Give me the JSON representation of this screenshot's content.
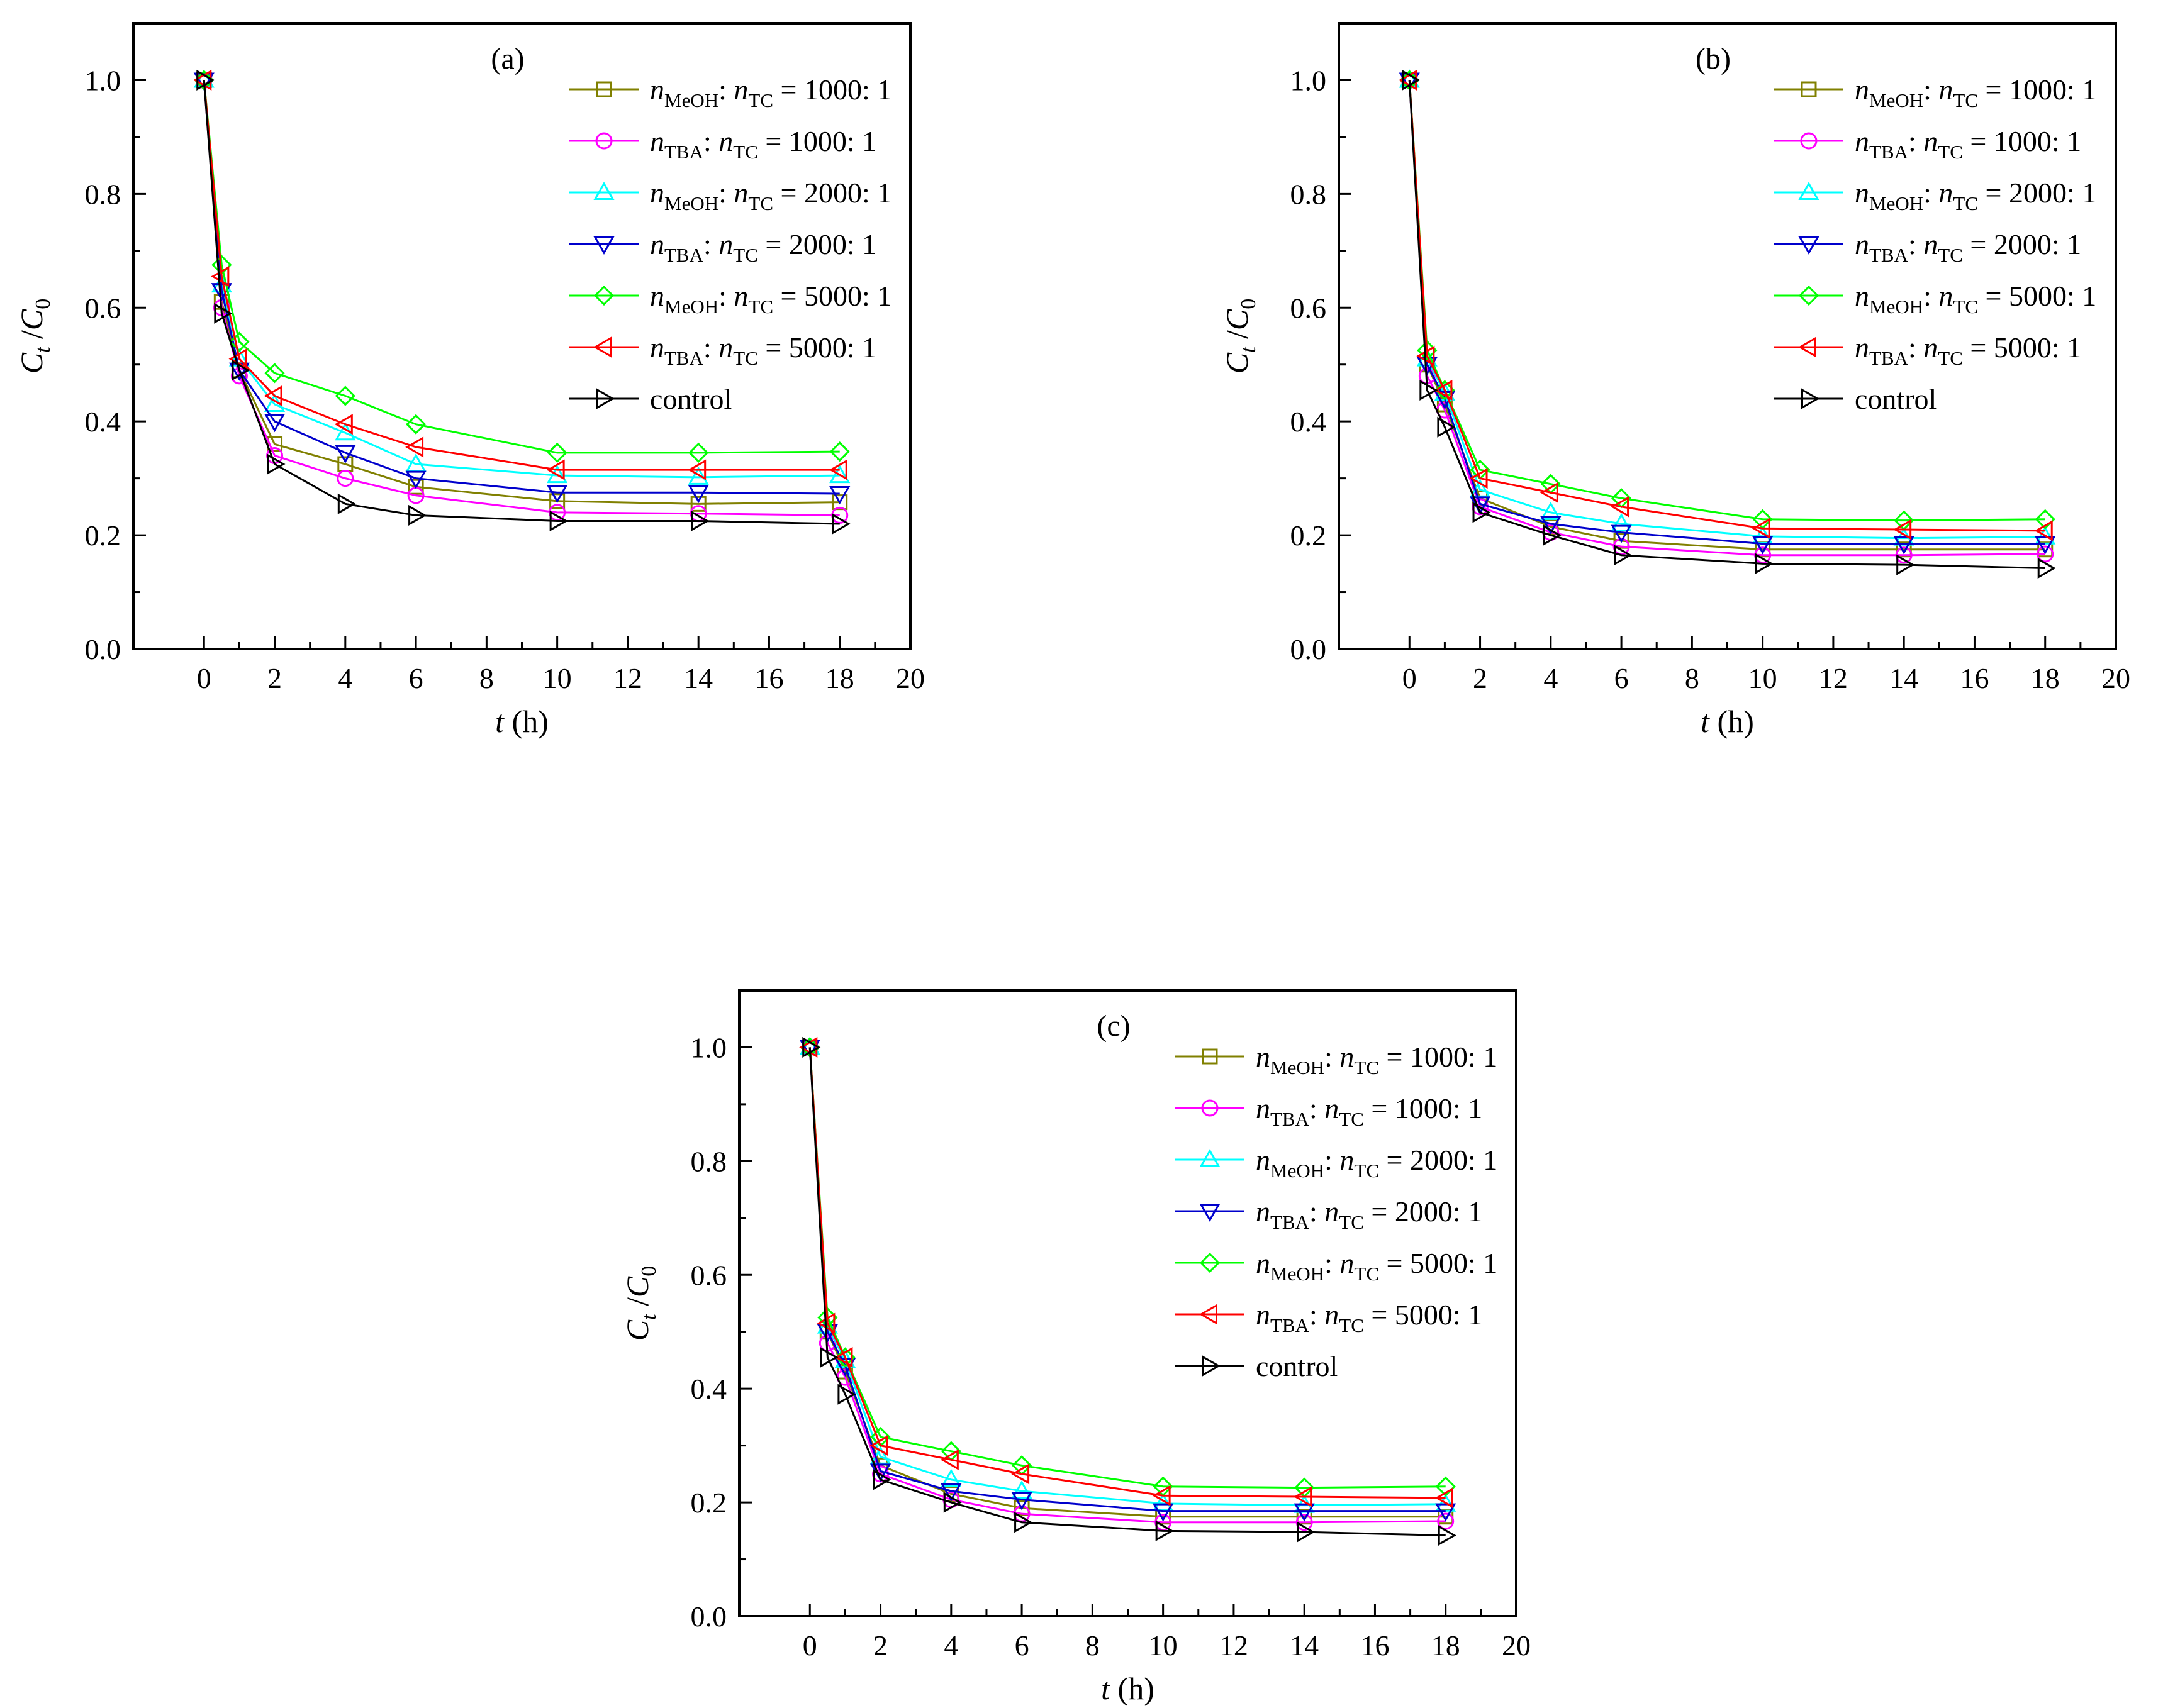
{
  "chart_data": [
    {
      "panel_label": "(a)",
      "type": "line",
      "xlabel": "t (h)",
      "ylabel": "C_t /C_0",
      "xlim": [
        -2,
        20
      ],
      "ylim": [
        0,
        1.1
      ],
      "xticks": [
        "0",
        "2",
        "4",
        "6",
        "8",
        "10",
        "12",
        "14",
        "16",
        "18",
        "20"
      ],
      "yticks": [
        "0.0",
        "0.2",
        "0.4",
        "0.6",
        "0.8",
        "1.0"
      ],
      "legend_position": "top-right",
      "x": [
        0,
        0.5,
        1,
        2,
        4,
        6,
        10,
        14,
        18
      ],
      "series": [
        {
          "name_main": "n",
          "name_sub": "MeOH",
          "name_mid": ": ",
          "name_main2": "n",
          "name_sub2": "TC",
          "name_tail": " = 1000: 1",
          "color": "#808000",
          "marker": "square",
          "values": [
            1.0,
            0.61,
            0.49,
            0.36,
            0.325,
            0.285,
            0.26,
            0.255,
            0.258
          ]
        },
        {
          "name_main": "n",
          "name_sub": "TBA",
          "name_mid": ": ",
          "name_main2": "n",
          "name_sub2": "TC",
          "name_tail": " = 1000:  1",
          "color": "#ff00ff",
          "marker": "circle",
          "values": [
            1.0,
            0.6,
            0.48,
            0.34,
            0.3,
            0.27,
            0.24,
            0.238,
            0.235
          ]
        },
        {
          "name_main": "n",
          "name_sub": "MeOH",
          "name_mid": ": ",
          "name_main2": "n",
          "name_sub2": "TC",
          "name_tail": " = 2000: 1",
          "color": "#00ffff",
          "marker": "triangle-up",
          "values": [
            1.0,
            0.64,
            0.51,
            0.43,
            0.38,
            0.325,
            0.305,
            0.302,
            0.305
          ]
        },
        {
          "name_main": "n",
          "name_sub": "TBA",
          "name_mid": ": ",
          "name_main2": "n",
          "name_sub2": "TC",
          "name_tail": " = 2000:  1",
          "color": "#0000cc",
          "marker": "triangle-down",
          "values": [
            1.0,
            0.63,
            0.49,
            0.4,
            0.345,
            0.3,
            0.275,
            0.275,
            0.273
          ]
        },
        {
          "name_main": "n",
          "name_sub": "MeOH",
          "name_mid": ": ",
          "name_main2": "n",
          "name_sub2": "TC",
          "name_tail": " = 5000: 1",
          "color": "#00ff00",
          "marker": "diamond",
          "values": [
            1.0,
            0.675,
            0.54,
            0.485,
            0.445,
            0.395,
            0.345,
            0.345,
            0.347
          ]
        },
        {
          "name_main": "n",
          "name_sub": "TBA",
          "name_mid": ": ",
          "name_main2": "n",
          "name_sub2": "TC",
          "name_tail": " = 5000:  1",
          "color": "#ff0000",
          "marker": "triangle-left",
          "values": [
            1.0,
            0.655,
            0.51,
            0.445,
            0.395,
            0.355,
            0.315,
            0.315,
            0.315
          ]
        },
        {
          "name_main": "control",
          "name_sub": "",
          "name_mid": "",
          "name_main2": "",
          "name_sub2": "",
          "name_tail": "",
          "color": "#000000",
          "marker": "triangle-right",
          "values": [
            1.0,
            0.59,
            0.49,
            0.325,
            0.255,
            0.235,
            0.225,
            0.225,
            0.22
          ]
        }
      ]
    },
    {
      "panel_label": "(b)",
      "type": "line",
      "xlabel": "t (h)",
      "ylabel": "C_t /C_0",
      "xlim": [
        -2,
        20
      ],
      "ylim": [
        0,
        1.1
      ],
      "xticks": [
        "0",
        "2",
        "4",
        "6",
        "8",
        "10",
        "12",
        "14",
        "16",
        "18",
        "20"
      ],
      "yticks": [
        "0.0",
        "0.2",
        "0.4",
        "0.6",
        "0.8",
        "1.0"
      ],
      "legend_position": "top-right",
      "x": [
        0,
        0.5,
        1,
        2,
        4,
        6,
        10,
        14,
        18
      ],
      "series": [
        {
          "name_main": "n",
          "name_sub": "MeOH",
          "name_mid": ": ",
          "name_main2": "n",
          "name_sub2": "TC",
          "name_tail": " = 1000: 1",
          "color": "#808000",
          "marker": "square",
          "values": [
            1.0,
            0.5,
            0.43,
            0.265,
            0.215,
            0.19,
            0.175,
            0.175,
            0.175
          ]
        },
        {
          "name_main": "n",
          "name_sub": "TBA",
          "name_mid": ": ",
          "name_main2": "n",
          "name_sub2": "TC",
          "name_tail": " = 1000:  1",
          "color": "#ff00ff",
          "marker": "circle",
          "values": [
            1.0,
            0.48,
            0.42,
            0.25,
            0.205,
            0.18,
            0.165,
            0.165,
            0.167
          ]
        },
        {
          "name_main": "n",
          "name_sub": "MeOH",
          "name_mid": ": ",
          "name_main2": "n",
          "name_sub2": "TC",
          "name_tail": " = 2000: 1",
          "color": "#00ffff",
          "marker": "triangle-up",
          "values": [
            1.0,
            0.51,
            0.45,
            0.28,
            0.24,
            0.22,
            0.198,
            0.195,
            0.197
          ]
        },
        {
          "name_main": "n",
          "name_sub": "TBA",
          "name_mid": ": ",
          "name_main2": "n",
          "name_sub2": "TC",
          "name_tail": " = 2000:  1",
          "color": "#0000cc",
          "marker": "triangle-down",
          "values": [
            1.0,
            0.5,
            0.44,
            0.255,
            0.22,
            0.205,
            0.185,
            0.185,
            0.185
          ]
        },
        {
          "name_main": "n",
          "name_sub": "MeOH",
          "name_mid": ": ",
          "name_main2": "n",
          "name_sub2": "TC",
          "name_tail": " = 5000: 1",
          "color": "#00ff00",
          "marker": "diamond",
          "values": [
            1.0,
            0.525,
            0.455,
            0.315,
            0.29,
            0.265,
            0.228,
            0.226,
            0.228
          ]
        },
        {
          "name_main": "n",
          "name_sub": "TBA",
          "name_mid": ": ",
          "name_main2": "n",
          "name_sub2": "TC",
          "name_tail": " = 5000:  1",
          "color": "#ff0000",
          "marker": "triangle-left",
          "values": [
            1.0,
            0.515,
            0.455,
            0.3,
            0.275,
            0.25,
            0.212,
            0.21,
            0.208
          ]
        },
        {
          "name_main": "control",
          "name_sub": "",
          "name_mid": "",
          "name_main2": "",
          "name_sub2": "",
          "name_tail": "",
          "color": "#000000",
          "marker": "triangle-right",
          "values": [
            1.0,
            0.455,
            0.39,
            0.24,
            0.2,
            0.165,
            0.15,
            0.148,
            0.142
          ]
        }
      ]
    },
    {
      "panel_label": "(c)",
      "type": "line",
      "xlabel": "t (h)",
      "ylabel": "C_t /C_0",
      "xlim": [
        -2,
        20
      ],
      "ylim": [
        0,
        1.1
      ],
      "xticks": [
        "0",
        "2",
        "4",
        "6",
        "8",
        "10",
        "12",
        "14",
        "16",
        "18",
        "20"
      ],
      "yticks": [
        "0.0",
        "0.2",
        "0.4",
        "0.6",
        "0.8",
        "1.0"
      ],
      "legend_position": "top-right",
      "x": [
        0,
        0.5,
        1,
        2,
        4,
        6,
        10,
        14,
        18
      ],
      "series": [
        {
          "name_main": "n",
          "name_sub": "MeOH",
          "name_mid": ": ",
          "name_main2": "n",
          "name_sub2": "TC",
          "name_tail": " = 1000: 1",
          "color": "#808000",
          "marker": "square",
          "values": [
            1.0,
            0.5,
            0.43,
            0.265,
            0.215,
            0.19,
            0.175,
            0.175,
            0.175
          ]
        },
        {
          "name_main": "n",
          "name_sub": "TBA",
          "name_mid": ": ",
          "name_main2": "n",
          "name_sub2": "TC",
          "name_tail": " = 1000:  1",
          "color": "#ff00ff",
          "marker": "circle",
          "values": [
            1.0,
            0.48,
            0.42,
            0.25,
            0.205,
            0.18,
            0.165,
            0.165,
            0.167
          ]
        },
        {
          "name_main": "n",
          "name_sub": "MeOH",
          "name_mid": ": ",
          "name_main2": "n",
          "name_sub2": "TC",
          "name_tail": " = 2000: 1",
          "color": "#00ffff",
          "marker": "triangle-up",
          "values": [
            1.0,
            0.51,
            0.45,
            0.28,
            0.24,
            0.22,
            0.198,
            0.195,
            0.197
          ]
        },
        {
          "name_main": "n",
          "name_sub": "TBA",
          "name_mid": ": ",
          "name_main2": "n",
          "name_sub2": "TC",
          "name_tail": " = 2000:  1",
          "color": "#0000cc",
          "marker": "triangle-down",
          "values": [
            1.0,
            0.5,
            0.44,
            0.255,
            0.22,
            0.205,
            0.185,
            0.185,
            0.185
          ]
        },
        {
          "name_main": "n",
          "name_sub": "MeOH",
          "name_mid": ": ",
          "name_main2": "n",
          "name_sub2": "TC",
          "name_tail": " = 5000: 1",
          "color": "#00ff00",
          "marker": "diamond",
          "values": [
            1.0,
            0.525,
            0.455,
            0.315,
            0.29,
            0.265,
            0.228,
            0.226,
            0.228
          ]
        },
        {
          "name_main": "n",
          "name_sub": "TBA",
          "name_mid": ": ",
          "name_main2": "n",
          "name_sub2": "TC",
          "name_tail": " = 5000:  1",
          "color": "#ff0000",
          "marker": "triangle-left",
          "values": [
            1.0,
            0.515,
            0.455,
            0.3,
            0.275,
            0.25,
            0.212,
            0.21,
            0.208
          ]
        },
        {
          "name_main": "control",
          "name_sub": "",
          "name_mid": "",
          "name_main2": "",
          "name_sub2": "",
          "name_tail": "",
          "color": "#000000",
          "marker": "triangle-right",
          "values": [
            1.0,
            0.455,
            0.39,
            0.24,
            0.2,
            0.165,
            0.15,
            0.148,
            0.142
          ]
        }
      ]
    }
  ]
}
